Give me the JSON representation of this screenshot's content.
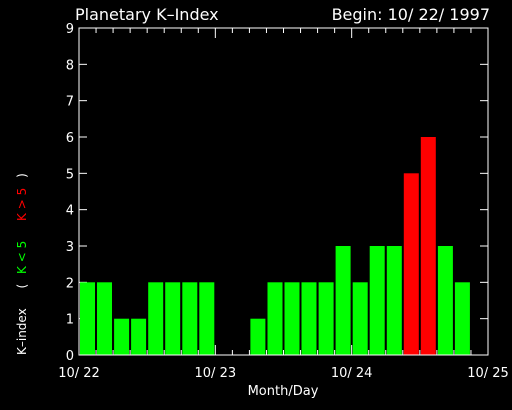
{
  "chart_data": {
    "type": "bar",
    "title": "Planetary K–Index",
    "subtitle": "Begin: 10/ 22/ 1997",
    "xlabel": "Month/Day",
    "ylabel": "K–index",
    "ylim": [
      0,
      9
    ],
    "yticks": [
      "0",
      "1",
      "2",
      "3",
      "4",
      "5",
      "6",
      "7",
      "8",
      "9"
    ],
    "xticks": [
      "10/ 22",
      "10/ 23",
      "10/ 24",
      "10/ 25"
    ],
    "legend": {
      "low_label": "K < 5",
      "high_label": "K > 5",
      "low_color": "#00ff00",
      "high_color": "#ff0000",
      "open_paren": "(",
      "close_paren": ")"
    },
    "values": [
      2,
      2,
      1,
      1,
      2,
      2,
      2,
      2,
      0,
      0,
      1,
      2,
      2,
      2,
      2,
      3,
      2,
      3,
      3,
      5,
      6,
      3,
      2,
      0
    ],
    "threshold": 5
  }
}
